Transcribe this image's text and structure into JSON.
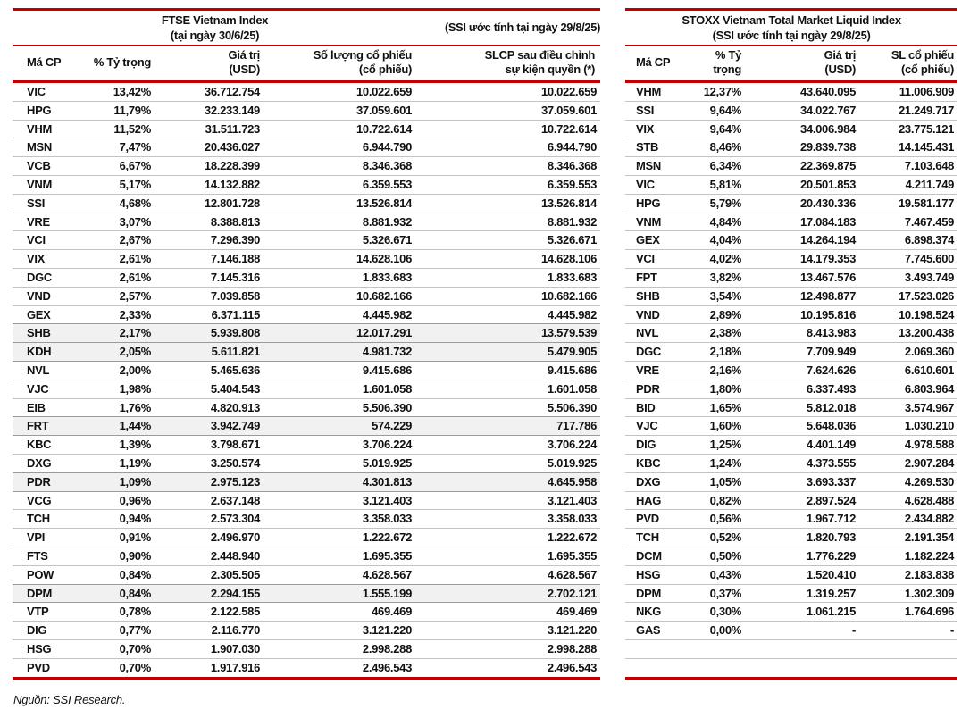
{
  "colors": {
    "accent_red": "#C00000",
    "row_line": "#C3C3C3",
    "highlight_bg": "#F1F1F1"
  },
  "footer": {
    "source": "Nguồn: SSI Research."
  },
  "left_table": {
    "title_line1": "FTSE Vietnam Index",
    "title_line2": "(tại ngày 30/6/25)",
    "subtitle": "(SSI ước tính tại ngày 29/8/25)",
    "columns": [
      {
        "l1": "Má CP",
        "l2": ""
      },
      {
        "l1": "% Tỷ trọng",
        "l2": ""
      },
      {
        "l1": "Giá trị",
        "l2": "(USD)"
      },
      {
        "l1": "Số lượng cổ phiếu",
        "l2": "(cổ phiếu)"
      },
      {
        "l1": "SLCP sau điều chỉnh",
        "l2": "sự kiện quyền (*)"
      }
    ],
    "highlighted_row_indices": [
      13,
      14,
      18,
      21,
      27
    ],
    "empty_rows": 0,
    "rows": [
      [
        "VIC",
        "13,42%",
        "36.712.754",
        "10.022.659",
        "10.022.659"
      ],
      [
        "HPG",
        "11,79%",
        "32.233.149",
        "37.059.601",
        "37.059.601"
      ],
      [
        "VHM",
        "11,52%",
        "31.511.723",
        "10.722.614",
        "10.722.614"
      ],
      [
        "MSN",
        "7,47%",
        "20.436.027",
        "6.944.790",
        "6.944.790"
      ],
      [
        "VCB",
        "6,67%",
        "18.228.399",
        "8.346.368",
        "8.346.368"
      ],
      [
        "VNM",
        "5,17%",
        "14.132.882",
        "6.359.553",
        "6.359.553"
      ],
      [
        "SSI",
        "4,68%",
        "12.801.728",
        "13.526.814",
        "13.526.814"
      ],
      [
        "VRE",
        "3,07%",
        "8.388.813",
        "8.881.932",
        "8.881.932"
      ],
      [
        "VCI",
        "2,67%",
        "7.296.390",
        "5.326.671",
        "5.326.671"
      ],
      [
        "VIX",
        "2,61%",
        "7.146.188",
        "14.628.106",
        "14.628.106"
      ],
      [
        "DGC",
        "2,61%",
        "7.145.316",
        "1.833.683",
        "1.833.683"
      ],
      [
        "VND",
        "2,57%",
        "7.039.858",
        "10.682.166",
        "10.682.166"
      ],
      [
        "GEX",
        "2,33%",
        "6.371.115",
        "4.445.982",
        "4.445.982"
      ],
      [
        "SHB",
        "2,17%",
        "5.939.808",
        "12.017.291",
        "13.579.539"
      ],
      [
        "KDH",
        "2,05%",
        "5.611.821",
        "4.981.732",
        "5.479.905"
      ],
      [
        "NVL",
        "2,00%",
        "5.465.636",
        "9.415.686",
        "9.415.686"
      ],
      [
        "VJC",
        "1,98%",
        "5.404.543",
        "1.601.058",
        "1.601.058"
      ],
      [
        "EIB",
        "1,76%",
        "4.820.913",
        "5.506.390",
        "5.506.390"
      ],
      [
        "FRT",
        "1,44%",
        "3.942.749",
        "574.229",
        "717.786"
      ],
      [
        "KBC",
        "1,39%",
        "3.798.671",
        "3.706.224",
        "3.706.224"
      ],
      [
        "DXG",
        "1,19%",
        "3.250.574",
        "5.019.925",
        "5.019.925"
      ],
      [
        "PDR",
        "1,09%",
        "2.975.123",
        "4.301.813",
        "4.645.958"
      ],
      [
        "VCG",
        "0,96%",
        "2.637.148",
        "3.121.403",
        "3.121.403"
      ],
      [
        "TCH",
        "0,94%",
        "2.573.304",
        "3.358.033",
        "3.358.033"
      ],
      [
        "VPI",
        "0,91%",
        "2.496.970",
        "1.222.672",
        "1.222.672"
      ],
      [
        "FTS",
        "0,90%",
        "2.448.940",
        "1.695.355",
        "1.695.355"
      ],
      [
        "POW",
        "0,84%",
        "2.305.505",
        "4.628.567",
        "4.628.567"
      ],
      [
        "DPM",
        "0,84%",
        "2.294.155",
        "1.555.199",
        "2.702.121"
      ],
      [
        "VTP",
        "0,78%",
        "2.122.585",
        "469.469",
        "469.469"
      ],
      [
        "DIG",
        "0,77%",
        "2.116.770",
        "3.121.220",
        "3.121.220"
      ],
      [
        "HSG",
        "0,70%",
        "1.907.030",
        "2.998.288",
        "2.998.288"
      ],
      [
        "PVD",
        "0,70%",
        "1.917.916",
        "2.496.543",
        "2.496.543"
      ]
    ]
  },
  "right_table": {
    "title_line1": "STOXX Vietnam Total Market Liquid Index",
    "title_line2": "(SSI ước tính tại ngày 29/8/25)",
    "columns": [
      {
        "l1": "Má CP",
        "l2": ""
      },
      {
        "l1": "% Tỷ",
        "l2": "trọng"
      },
      {
        "l1": "Giá trị",
        "l2": "(USD)"
      },
      {
        "l1": "SL cổ phiếu",
        "l2": "(cổ phiếu)"
      }
    ],
    "highlighted_row_indices": [],
    "empty_rows": 2,
    "rows": [
      [
        "VHM",
        "12,37%",
        "43.640.095",
        "11.006.909"
      ],
      [
        "SSI",
        "9,64%",
        "34.022.767",
        "21.249.717"
      ],
      [
        "VIX",
        "9,64%",
        "34.006.984",
        "23.775.121"
      ],
      [
        "STB",
        "8,46%",
        "29.839.738",
        "14.145.431"
      ],
      [
        "MSN",
        "6,34%",
        "22.369.875",
        "7.103.648"
      ],
      [
        "VIC",
        "5,81%",
        "20.501.853",
        "4.211.749"
      ],
      [
        "HPG",
        "5,79%",
        "20.430.336",
        "19.581.177"
      ],
      [
        "VNM",
        "4,84%",
        "17.084.183",
        "7.467.459"
      ],
      [
        "GEX",
        "4,04%",
        "14.264.194",
        "6.898.374"
      ],
      [
        "VCI",
        "4,02%",
        "14.179.353",
        "7.745.600"
      ],
      [
        "FPT",
        "3,82%",
        "13.467.576",
        "3.493.749"
      ],
      [
        "SHB",
        "3,54%",
        "12.498.877",
        "17.523.026"
      ],
      [
        "VND",
        "2,89%",
        "10.195.816",
        "10.198.524"
      ],
      [
        "NVL",
        "2,38%",
        "8.413.983",
        "13.200.438"
      ],
      [
        "DGC",
        "2,18%",
        "7.709.949",
        "2.069.360"
      ],
      [
        "VRE",
        "2,16%",
        "7.624.626",
        "6.610.601"
      ],
      [
        "PDR",
        "1,80%",
        "6.337.493",
        "6.803.964"
      ],
      [
        "BID",
        "1,65%",
        "5.812.018",
        "3.574.967"
      ],
      [
        "VJC",
        "1,60%",
        "5.648.036",
        "1.030.210"
      ],
      [
        "DIG",
        "1,25%",
        "4.401.149",
        "4.978.588"
      ],
      [
        "KBC",
        "1,24%",
        "4.373.555",
        "2.907.284"
      ],
      [
        "DXG",
        "1,05%",
        "3.693.337",
        "4.269.530"
      ],
      [
        "HAG",
        "0,82%",
        "2.897.524",
        "4.628.488"
      ],
      [
        "PVD",
        "0,56%",
        "1.967.712",
        "2.434.882"
      ],
      [
        "TCH",
        "0,52%",
        "1.820.793",
        "2.191.354"
      ],
      [
        "DCM",
        "0,50%",
        "1.776.229",
        "1.182.224"
      ],
      [
        "HSG",
        "0,43%",
        "1.520.410",
        "2.183.838"
      ],
      [
        "DPM",
        "0,37%",
        "1.319.257",
        "1.302.309"
      ],
      [
        "NKG",
        "0,30%",
        "1.061.215",
        "1.764.696"
      ],
      [
        "GAS",
        "0,00%",
        "-",
        "-"
      ]
    ]
  }
}
